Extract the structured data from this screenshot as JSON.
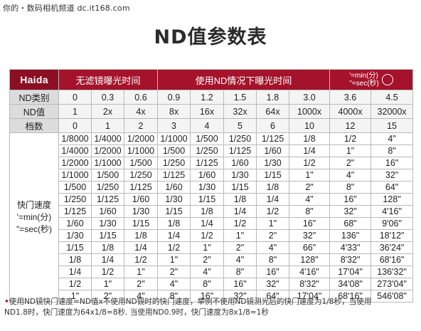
{
  "watermark": "你的・数码相机频道 dc.it168.com",
  "title": "ND值参数表",
  "table": {
    "brand": "Haida",
    "header_no_filter": "无滤镜曝光时间",
    "header_with_filter": "使用ND情况下曝光时间",
    "legend_line1": "'=min(分)",
    "legend_line2": "\"=sec(秒)",
    "meta_rows": [
      {
        "label": "ND类别",
        "values": [
          "0",
          "0.3",
          "0.6",
          "0.9",
          "1.2",
          "1.5",
          "1.8",
          "3.0",
          "3.6",
          "4.5"
        ]
      },
      {
        "label": "ND值",
        "values": [
          "1",
          "2x",
          "4x",
          "8x",
          "16x",
          "32x",
          "64x",
          "1000x",
          "4000x",
          "32000x"
        ]
      },
      {
        "label": "档数",
        "values": [
          "0",
          "1",
          "2",
          "3",
          "4",
          "5",
          "6",
          "10",
          "12",
          "15"
        ]
      }
    ],
    "side_label_1": "快门速度",
    "side_label_2": "'=min(分)",
    "side_label_3": "\"=sec(秒)",
    "rows": [
      [
        "1/8000",
        "1/4000",
        "1/2000",
        "1/1000",
        "1/500",
        "1/250",
        "1/125",
        "1/8",
        "1/2",
        "4\""
      ],
      [
        "1/4000",
        "1/2000",
        "1/1000",
        "1/500",
        "1/250",
        "1/125",
        "1/60",
        "1/4",
        "1\"",
        "8\""
      ],
      [
        "1/2000",
        "1/1000",
        "1/500",
        "1/250",
        "1/125",
        "1/60",
        "1/30",
        "1/2",
        "2\"",
        "16\""
      ],
      [
        "1/1000",
        "1/500",
        "1/250",
        "1/125",
        "1/60",
        "1/30",
        "1/15",
        "1\"",
        "4\"",
        "32\""
      ],
      [
        "1/500",
        "1/250",
        "1/125",
        "1/60",
        "1/30",
        "1/15",
        "1/8",
        "2\"",
        "8\"",
        "64\""
      ],
      [
        "1/250",
        "1/125",
        "1/60",
        "1/30",
        "1/15",
        "1/8",
        "1/4",
        "4\"",
        "16\"",
        "128\""
      ],
      [
        "1/125",
        "1/60",
        "1/30",
        "1/15",
        "1/8",
        "1/4",
        "1/2",
        "8\"",
        "32\"",
        "4'16\""
      ],
      [
        "1/60",
        "1/30",
        "1/15",
        "1/8",
        "1/4",
        "1/2",
        "1\"",
        "16\"",
        "68\"",
        "9'06\""
      ],
      [
        "1/30",
        "1/15",
        "1/8",
        "1/4",
        "1/2",
        "1\"",
        "2\"",
        "32\"",
        "136\"",
        "18'12\""
      ],
      [
        "1/15",
        "1/8",
        "1/4",
        "1/2",
        "1\"",
        "2\"",
        "4\"",
        "66\"",
        "4'33\"",
        "36'24\""
      ],
      [
        "1/8",
        "1/4",
        "1/2",
        "1\"",
        "2\"",
        "4\"",
        "8\"",
        "128\"",
        "8'32\"",
        "68'16\""
      ],
      [
        "1/4",
        "1/2",
        "1\"",
        "2\"",
        "4\"",
        "8\"",
        "16\"",
        "4'16\"",
        "17'04\"",
        "136'32\""
      ],
      [
        "1/2",
        "1\"",
        "2\"",
        "4\"",
        "8\"",
        "16\"",
        "32\"",
        "8'32\"",
        "34'08\"",
        "273'04\""
      ],
      [
        "1\"",
        "2\"",
        "4\"",
        "8\"",
        "16\"",
        "32\"",
        "64\"",
        "17'04\"",
        "68'16\"",
        "546'08\""
      ]
    ]
  },
  "footnote": {
    "line1": "使用ND镜快门速度=ND值x不使用ND镜时的快门速度，举例不使用ND镜测光后的快门速度为1/8秒，当使用",
    "line2": "ND1.8时，快门速度为64x1/8=8秒. 当使用ND0.9时，快门速度为8x1/8=1秒"
  },
  "colors": {
    "header_red": "#a4122b",
    "brand_red": "#8c0e22",
    "label_gray": "#dcdcdc",
    "bullet_red": "#b81f35"
  }
}
